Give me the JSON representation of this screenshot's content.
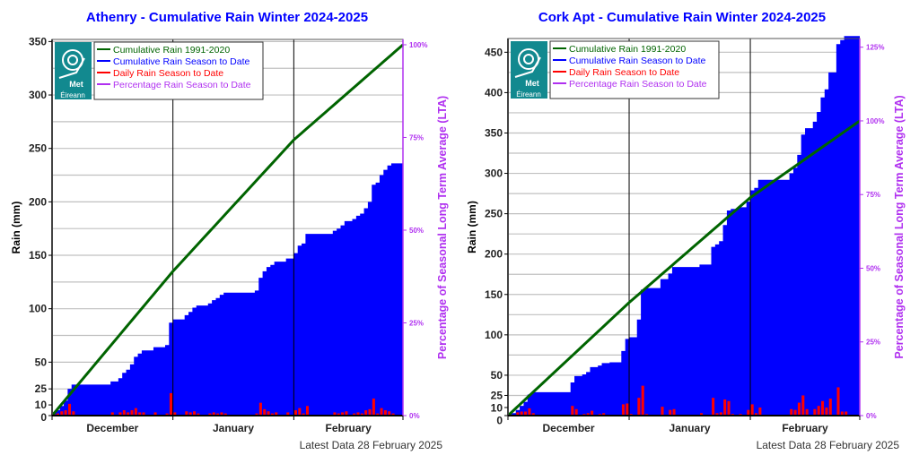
{
  "legend": {
    "lta": "Cumulative Rain 1991-2020",
    "cum": "Cumulative Rain Season to Date",
    "daily": "Daily Rain Season to Date",
    "pct": "Percentage Rain Season to Date"
  },
  "logo_text": "Met Éireann",
  "colors": {
    "title": "#0000ff",
    "lta": "#006400",
    "cum": "#0000ff",
    "daily": "#ff0000",
    "pct": "#b030f0"
  },
  "chart_data": [
    {
      "type": "bar",
      "title": "Athenry - Cumulative Rain Winter 2024-2025",
      "ylabel": "Rain (mm)",
      "y2label": "Percentage  of Seasonal Long Term Average (LTA)",
      "ylim": [
        0,
        352
      ],
      "yticks": [
        0,
        10,
        25,
        50,
        100,
        150,
        200,
        250,
        300,
        350
      ],
      "gridlines": [
        25,
        50,
        75,
        100,
        125,
        150,
        175,
        200,
        225,
        250,
        275,
        300,
        325,
        350
      ],
      "y2ticks": [
        "0%",
        "25%",
        "50%",
        "75%",
        "100%"
      ],
      "months": [
        "December",
        "January",
        "February"
      ],
      "month_days": [
        31,
        31,
        28
      ],
      "lta_month_end": [
        0,
        135,
        258,
        347
      ],
      "daily": [
        3,
        2,
        4,
        5,
        11,
        4,
        0,
        0,
        0,
        0,
        0,
        0,
        0,
        0,
        0,
        3,
        0,
        3,
        5,
        3,
        5,
        7,
        3,
        3,
        0,
        0,
        3,
        0,
        0,
        2,
        21,
        3,
        0,
        0,
        4,
        3,
        4,
        2,
        0,
        0,
        2,
        3,
        2,
        3,
        2,
        0,
        0,
        0,
        0,
        0,
        0,
        0,
        2,
        12,
        6,
        4,
        2,
        3,
        0,
        0,
        3,
        0,
        5,
        7,
        2,
        9,
        0,
        0,
        0,
        0,
        0,
        0,
        3,
        2,
        3,
        4,
        0,
        2,
        3,
        2,
        5,
        6,
        16,
        2,
        7,
        5,
        4,
        2,
        0,
        0
      ],
      "footer": "Latest Data 28 February 2025"
    },
    {
      "type": "bar",
      "title": "Cork Apt - Cumulative Rain Winter 2024-2025",
      "ylabel": "Rain (mm)",
      "y2label": "Percentage  of Seasonal Long Term Average (LTA)",
      "ylim": [
        0,
        467
      ],
      "yticks": [
        0,
        10,
        25,
        50,
        100,
        150,
        200,
        250,
        300,
        350,
        400,
        450
      ],
      "gridlines": [
        25,
        50,
        75,
        100,
        125,
        150,
        175,
        200,
        225,
        250,
        275,
        300,
        325,
        350,
        375,
        400,
        425,
        450
      ],
      "y2ticks": [
        "0%",
        "25%",
        "50%",
        "75%",
        "100%",
        "125%"
      ],
      "months": [
        "December",
        "January",
        "February"
      ],
      "month_days": [
        31,
        31,
        28
      ],
      "lta_month_end": [
        0,
        140,
        270,
        365
      ],
      "daily": [
        2,
        1,
        4,
        5,
        5,
        9,
        3,
        0,
        0,
        0,
        0,
        0,
        0,
        0,
        0,
        0,
        12,
        8,
        0,
        2,
        3,
        6,
        0,
        2,
        3,
        0,
        1,
        0,
        0,
        14,
        15,
        2,
        0,
        22,
        37,
        2,
        0,
        0,
        0,
        11,
        0,
        7,
        8,
        0,
        0,
        0,
        0,
        0,
        0,
        3,
        0,
        0,
        22,
        3,
        4,
        20,
        18,
        2,
        0,
        2,
        0,
        7,
        14,
        3,
        10,
        0,
        0,
        0,
        0,
        0,
        0,
        0,
        8,
        7,
        16,
        25,
        8,
        0,
        8,
        12,
        18,
        10,
        21,
        0,
        35,
        5,
        5,
        0,
        0,
        0
      ],
      "footer": "Latest Data 28 February 2025"
    }
  ]
}
